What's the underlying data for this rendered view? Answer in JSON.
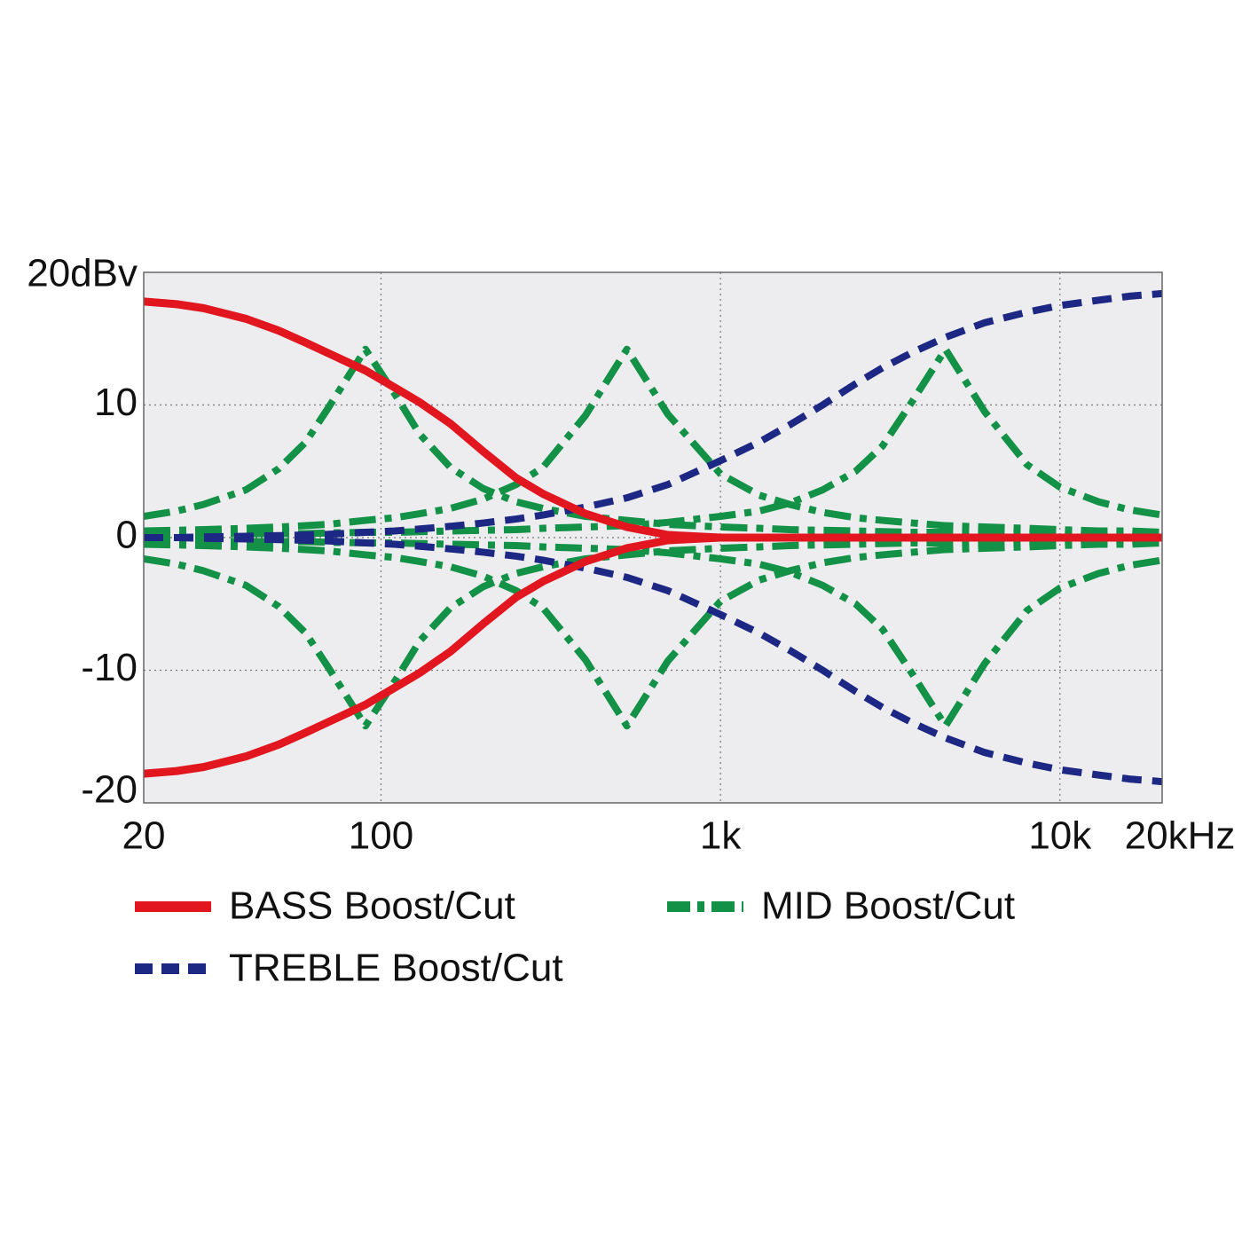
{
  "chart_data": {
    "type": "line",
    "xscale": "log",
    "x": [
      20,
      25,
      30,
      40,
      50,
      60,
      70,
      90,
      110,
      130,
      160,
      200,
      250,
      300,
      400,
      530,
      700,
      1000,
      1300,
      1600,
      2000,
      2500,
      3000,
      3700,
      4600,
      6000,
      8000,
      10000,
      13000,
      16000,
      20000
    ],
    "xlim": [
      20,
      20000
    ],
    "xticks": [
      20,
      100,
      {
        "value": 1000,
        "label": "1k"
      },
      {
        "value": 10000,
        "label": "10k"
      },
      {
        "value": 20000,
        "label": "20kHz"
      }
    ],
    "ylim": [
      -20,
      20
    ],
    "yticks": [
      {
        "value": 20,
        "label": "20dBv"
      },
      10,
      0,
      -10,
      -20
    ],
    "grid": true,
    "series": [
      {
        "name": "BASS Boost/Cut",
        "color": "#e2161f",
        "style": "solid",
        "curves": [
          [
            17.8,
            17.6,
            17.3,
            16.5,
            15.6,
            14.7,
            13.9,
            12.6,
            11.3,
            10.2,
            8.6,
            6.5,
            4.5,
            3.3,
            1.8,
            0.8,
            0.2,
            0,
            0,
            0,
            0,
            0,
            0,
            0,
            0,
            0,
            0,
            0,
            0,
            0,
            0
          ],
          [
            -17.8,
            -17.6,
            -17.3,
            -16.5,
            -15.6,
            -14.7,
            -13.9,
            -12.6,
            -11.3,
            -10.2,
            -8.6,
            -6.5,
            -4.5,
            -3.3,
            -1.8,
            -0.8,
            -0.2,
            0,
            0,
            0,
            0,
            0,
            0,
            0,
            0,
            0,
            0,
            0,
            0,
            0,
            0
          ]
        ]
      },
      {
        "name": "TREBLE Boost/Cut",
        "color": "#1d2784",
        "style": "dashed",
        "curves": [
          [
            0,
            0,
            0.05,
            0.1,
            0.15,
            0.2,
            0.25,
            0.4,
            0.5,
            0.65,
            0.85,
            1.1,
            1.4,
            1.7,
            2.3,
            3.0,
            4.0,
            5.8,
            7.2,
            8.5,
            10.0,
            11.6,
            12.8,
            14.0,
            15.1,
            16.2,
            17.0,
            17.5,
            17.9,
            18.2,
            18.4
          ],
          [
            0,
            0,
            -0.05,
            -0.1,
            -0.15,
            -0.2,
            -0.25,
            -0.4,
            -0.5,
            -0.65,
            -0.85,
            -1.1,
            -1.4,
            -1.7,
            -2.3,
            -3.0,
            -4.0,
            -5.8,
            -7.2,
            -8.5,
            -10.0,
            -11.6,
            -12.8,
            -14.0,
            -15.1,
            -16.2,
            -17.0,
            -17.5,
            -17.9,
            -18.2,
            -18.4
          ]
        ]
      },
      {
        "name": "MID Boost/Cut",
        "color": "#139247",
        "style": "dashdot",
        "curves": [
          [
            1.6,
            2.0,
            2.5,
            3.6,
            5.2,
            7.2,
            9.8,
            14.2,
            10.8,
            7.8,
            5.3,
            3.7,
            2.7,
            2.2,
            1.6,
            1.3,
            1.0,
            0.8,
            0.7,
            0.6,
            0.55,
            0.5,
            0.45,
            0.4,
            0.4,
            0.35,
            0.3,
            0.3,
            0.25,
            0.25,
            0.25
          ],
          [
            -1.6,
            -2.0,
            -2.5,
            -3.6,
            -5.2,
            -7.2,
            -9.8,
            -14.2,
            -10.8,
            -7.8,
            -5.3,
            -3.7,
            -2.7,
            -2.2,
            -1.6,
            -1.3,
            -1.0,
            -0.8,
            -0.7,
            -0.6,
            -0.55,
            -0.5,
            -0.45,
            -0.4,
            -0.4,
            -0.35,
            -0.3,
            -0.3,
            -0.25,
            -0.25,
            -0.25
          ],
          [
            0.5,
            0.55,
            0.6,
            0.7,
            0.8,
            0.9,
            1.0,
            1.3,
            1.5,
            1.8,
            2.2,
            2.9,
            4.0,
            5.3,
            9.2,
            14.2,
            9.3,
            4.8,
            3.2,
            2.5,
            1.9,
            1.5,
            1.3,
            1.1,
            0.9,
            0.8,
            0.7,
            0.6,
            0.5,
            0.5,
            0.4
          ],
          [
            -0.5,
            -0.55,
            -0.6,
            -0.7,
            -0.8,
            -0.9,
            -1.0,
            -1.3,
            -1.5,
            -1.8,
            -2.2,
            -2.9,
            -4.0,
            -5.3,
            -9.2,
            -14.2,
            -9.3,
            -4.8,
            -3.2,
            -2.5,
            -1.9,
            -1.5,
            -1.3,
            -1.1,
            -0.9,
            -0.8,
            -0.7,
            -0.6,
            -0.5,
            -0.5,
            -0.4
          ],
          [
            0.25,
            0.25,
            0.25,
            0.3,
            0.3,
            0.3,
            0.35,
            0.4,
            0.4,
            0.45,
            0.5,
            0.55,
            0.6,
            0.7,
            0.8,
            0.9,
            1.15,
            1.6,
            2.0,
            2.6,
            3.6,
            5.0,
            6.9,
            10.4,
            14.2,
            9.5,
            5.5,
            3.8,
            2.7,
            2.1,
            1.7
          ],
          [
            -0.25,
            -0.25,
            -0.25,
            -0.3,
            -0.3,
            -0.3,
            -0.35,
            -0.4,
            -0.4,
            -0.45,
            -0.5,
            -0.55,
            -0.6,
            -0.7,
            -0.8,
            -0.9,
            -1.15,
            -1.6,
            -2.0,
            -2.6,
            -3.6,
            -5.0,
            -6.9,
            -10.4,
            -14.2,
            -9.5,
            -5.5,
            -3.8,
            -2.7,
            -2.1,
            -1.7
          ]
        ]
      }
    ]
  }
}
